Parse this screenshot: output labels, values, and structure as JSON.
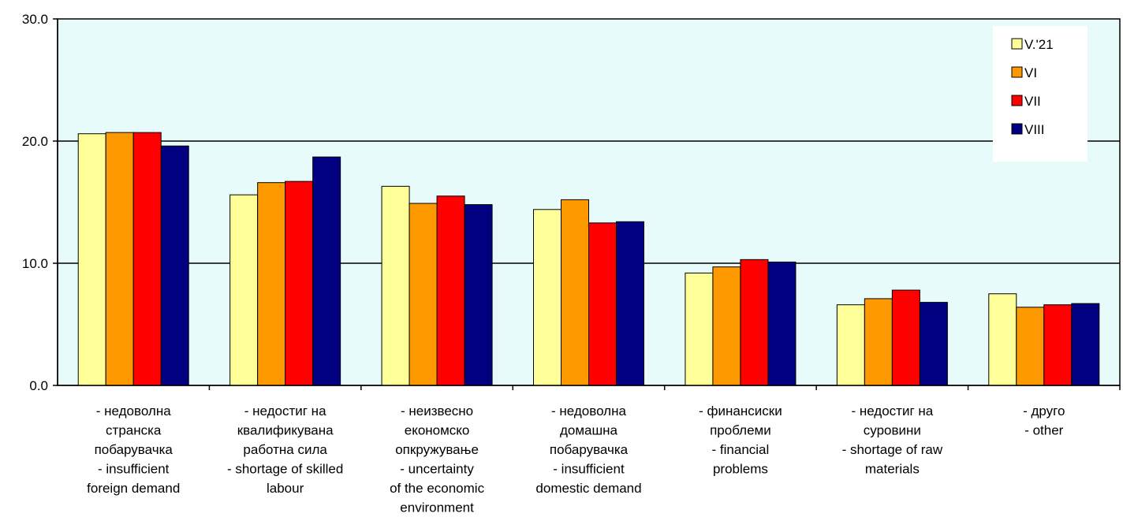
{
  "chart_data": {
    "type": "bar",
    "title": "",
    "xlabel": "",
    "ylabel": "",
    "ylim": [
      0,
      30
    ],
    "yticks": [
      "0.0",
      "10.0",
      "20.0",
      "30.0"
    ],
    "grid": "horizontal",
    "legend_position": "top-right",
    "plot_background": "#e8fbfb",
    "categories": [
      [
        "- недоволна",
        "странска",
        "побарувачка",
        "- insufficient",
        "foreign demand"
      ],
      [
        "- недостиг на",
        "квалификувана",
        "работна сила",
        "- shortage of skilled",
        "labour"
      ],
      [
        "- неизвесно",
        "економско",
        "опкружување",
        "- uncertainty",
        "of the economic",
        "environment"
      ],
      [
        "- недоволна",
        "домашна",
        "побарувачка",
        "- insufficient",
        "domestic demand"
      ],
      [
        "- финансиски",
        "проблеми",
        "- financial",
        "problems"
      ],
      [
        "- недостиг на",
        "суровини",
        "- shortage of raw",
        "materials"
      ],
      [
        "- друго",
        "- other"
      ]
    ],
    "series": [
      {
        "name": "V.'21",
        "color": "#ffff99",
        "values": [
          20.6,
          15.6,
          16.3,
          14.4,
          9.2,
          6.6,
          7.5
        ]
      },
      {
        "name": "VI",
        "color": "#ff9900",
        "values": [
          20.7,
          16.6,
          14.9,
          15.2,
          9.7,
          7.1,
          6.4
        ]
      },
      {
        "name": "VII",
        "color": "#ff0000",
        "values": [
          20.7,
          16.7,
          15.5,
          13.3,
          10.3,
          7.8,
          6.6
        ]
      },
      {
        "name": "VIII",
        "color": "#000080",
        "values": [
          19.6,
          18.7,
          14.8,
          13.4,
          10.1,
          6.8,
          6.7
        ]
      }
    ]
  }
}
